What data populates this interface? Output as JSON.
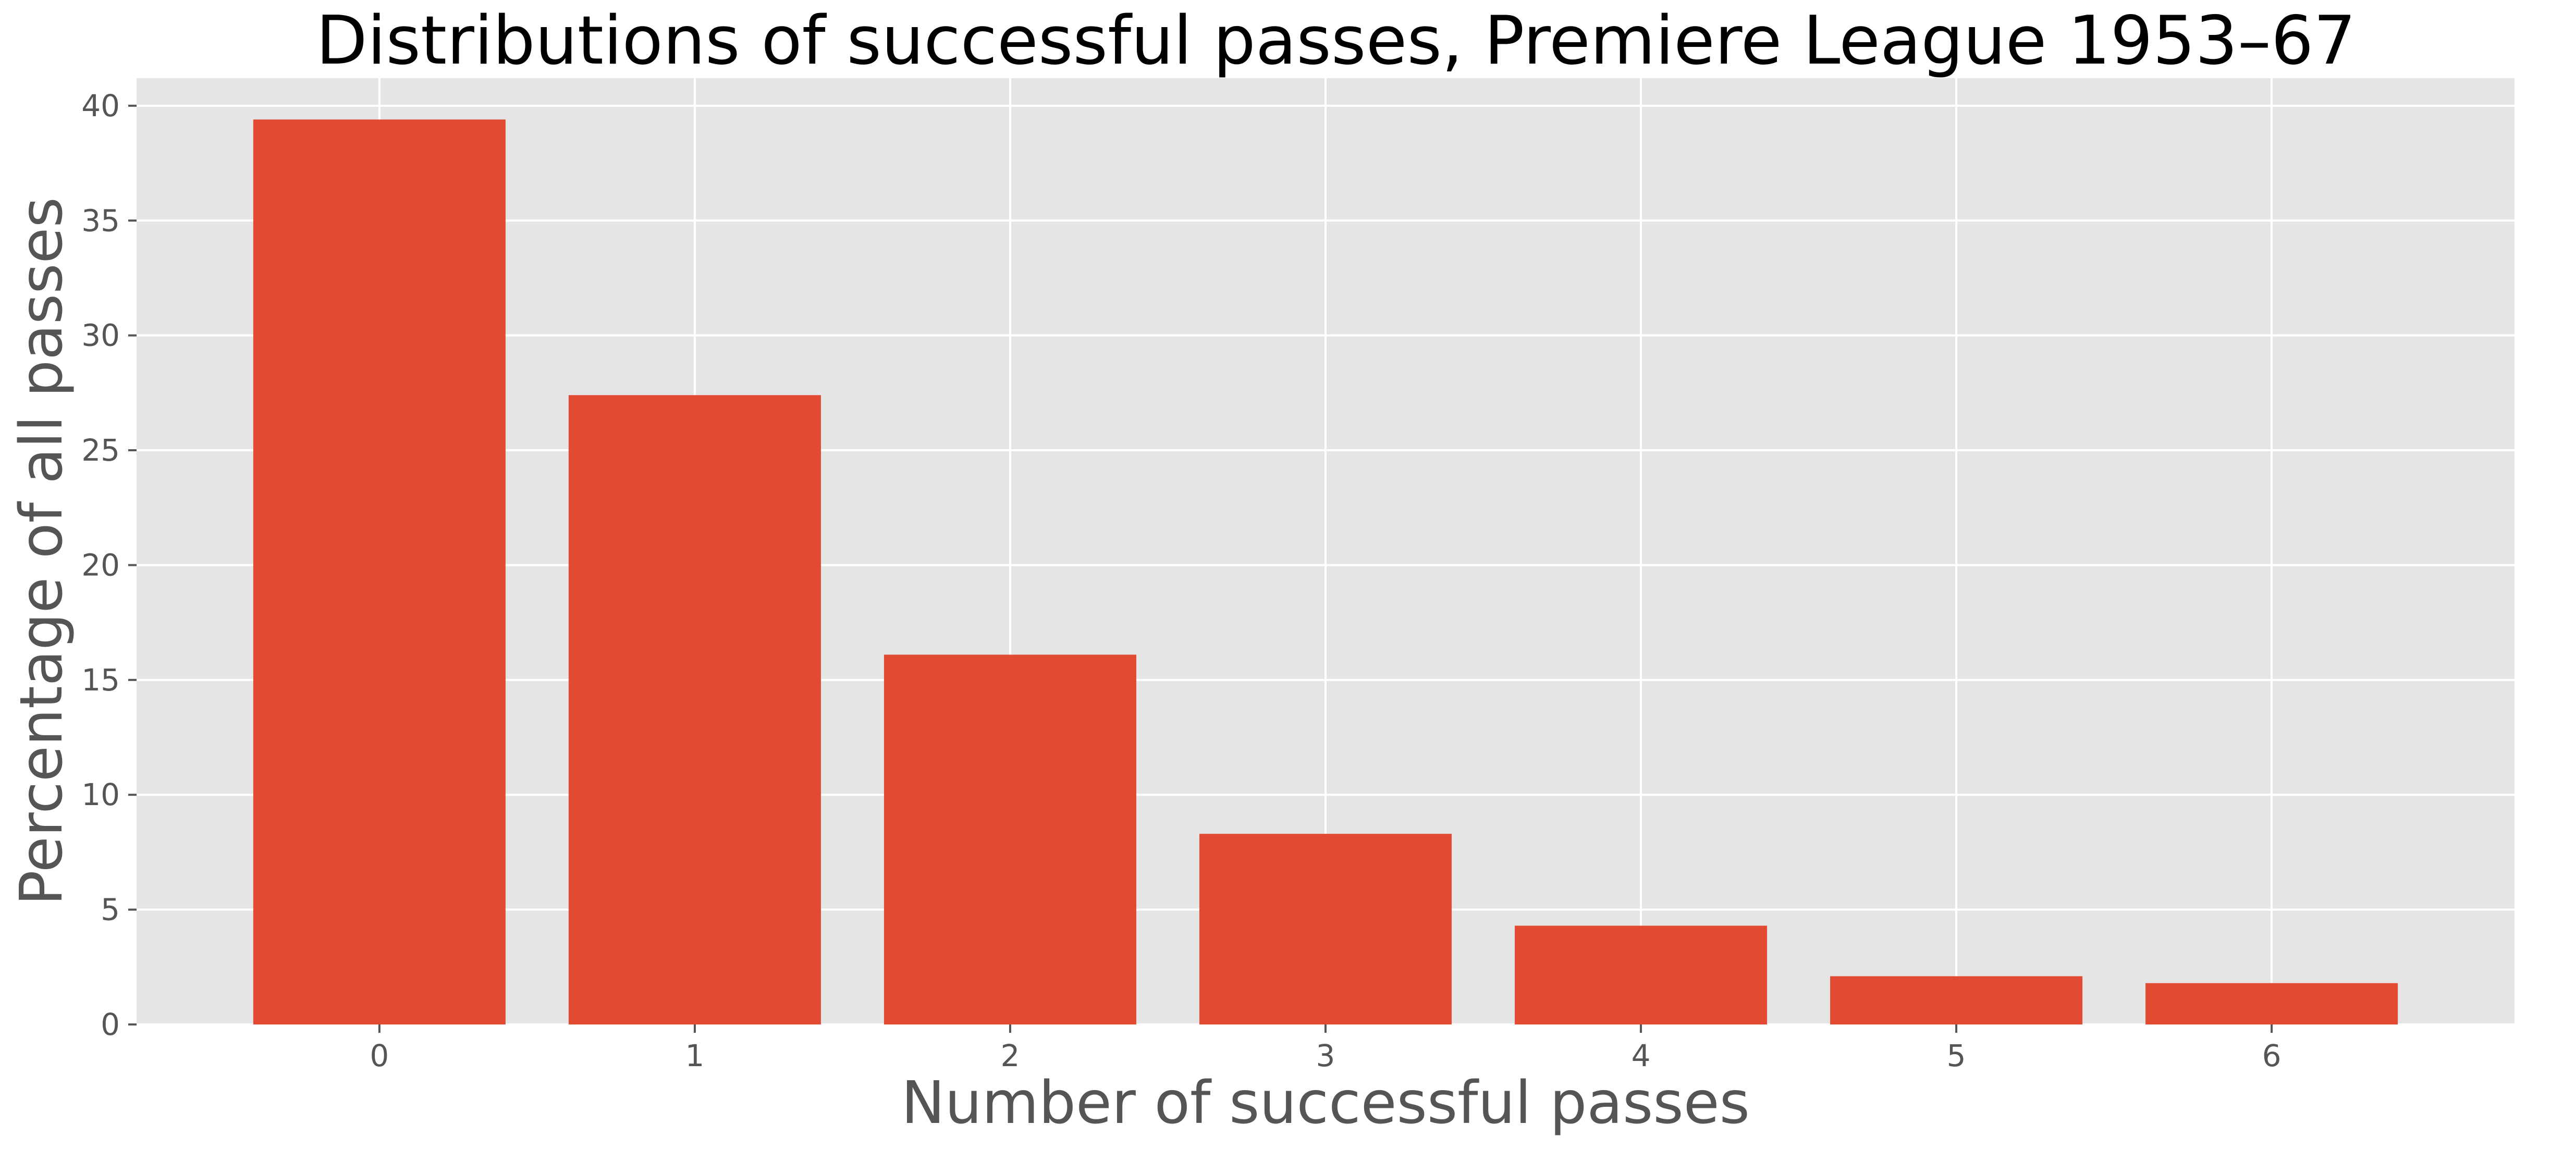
{
  "chart_data": {
    "type": "bar",
    "title": "Distributions of successful passes, Premiere League 1953–67",
    "xlabel": "Number of successful passes",
    "ylabel": "Percentage of all passes",
    "categories": [
      "0",
      "1",
      "2",
      "3",
      "4",
      "5",
      "6"
    ],
    "values": [
      39.4,
      27.4,
      16.1,
      8.3,
      4.3,
      2.1,
      1.8
    ],
    "ylim": [
      0,
      41.2
    ],
    "yticks": [
      0,
      5,
      10,
      15,
      20,
      25,
      30,
      35,
      40
    ],
    "grid": true,
    "legend": "none",
    "colors": {
      "bar": "#E24A33",
      "plot_background": "#E5E5E5",
      "grid": "#FFFFFF",
      "text": "#555555",
      "title": "#000000"
    }
  }
}
